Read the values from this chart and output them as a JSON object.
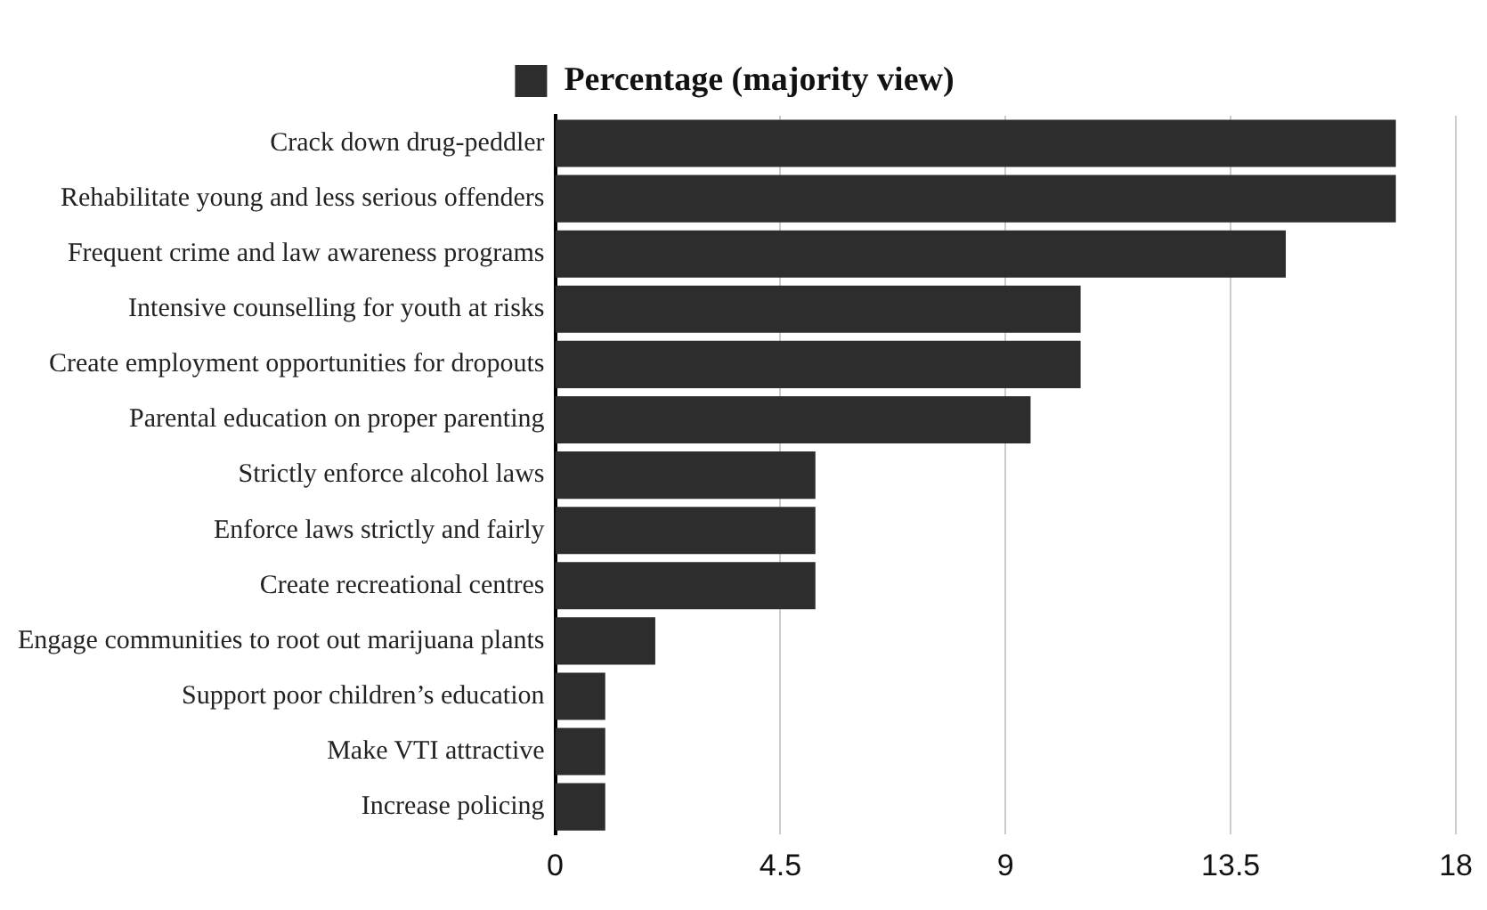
{
  "chart_data": {
    "type": "bar",
    "orientation": "horizontal",
    "categories": [
      "Crack down drug-peddler",
      "Rehabilitate young and less serious offenders",
      "Frequent crime and law awareness programs",
      "Intensive counselling for youth at risks",
      "Create employment opportunities for dropouts",
      "Parental education on proper parenting",
      "Strictly enforce alcohol laws",
      "Enforce laws strictly and fairly",
      "Create recreational centres",
      "Engage communities to root out marijuana plants",
      "Support poor children’s education",
      "Make VTI attractive",
      "Increase policing"
    ],
    "series": [
      {
        "name": "Percentage (majority view)",
        "color": "#2d2d2d",
        "values": [
          16.8,
          16.8,
          14.6,
          10.5,
          10.5,
          9.5,
          5.2,
          5.2,
          5.2,
          2.0,
          1.0,
          1.0,
          1.0
        ]
      }
    ],
    "xlim": [
      0,
      18
    ],
    "xticks": [
      0,
      4.5,
      9,
      13.5,
      18
    ],
    "grid": "x",
    "legend": "top"
  }
}
